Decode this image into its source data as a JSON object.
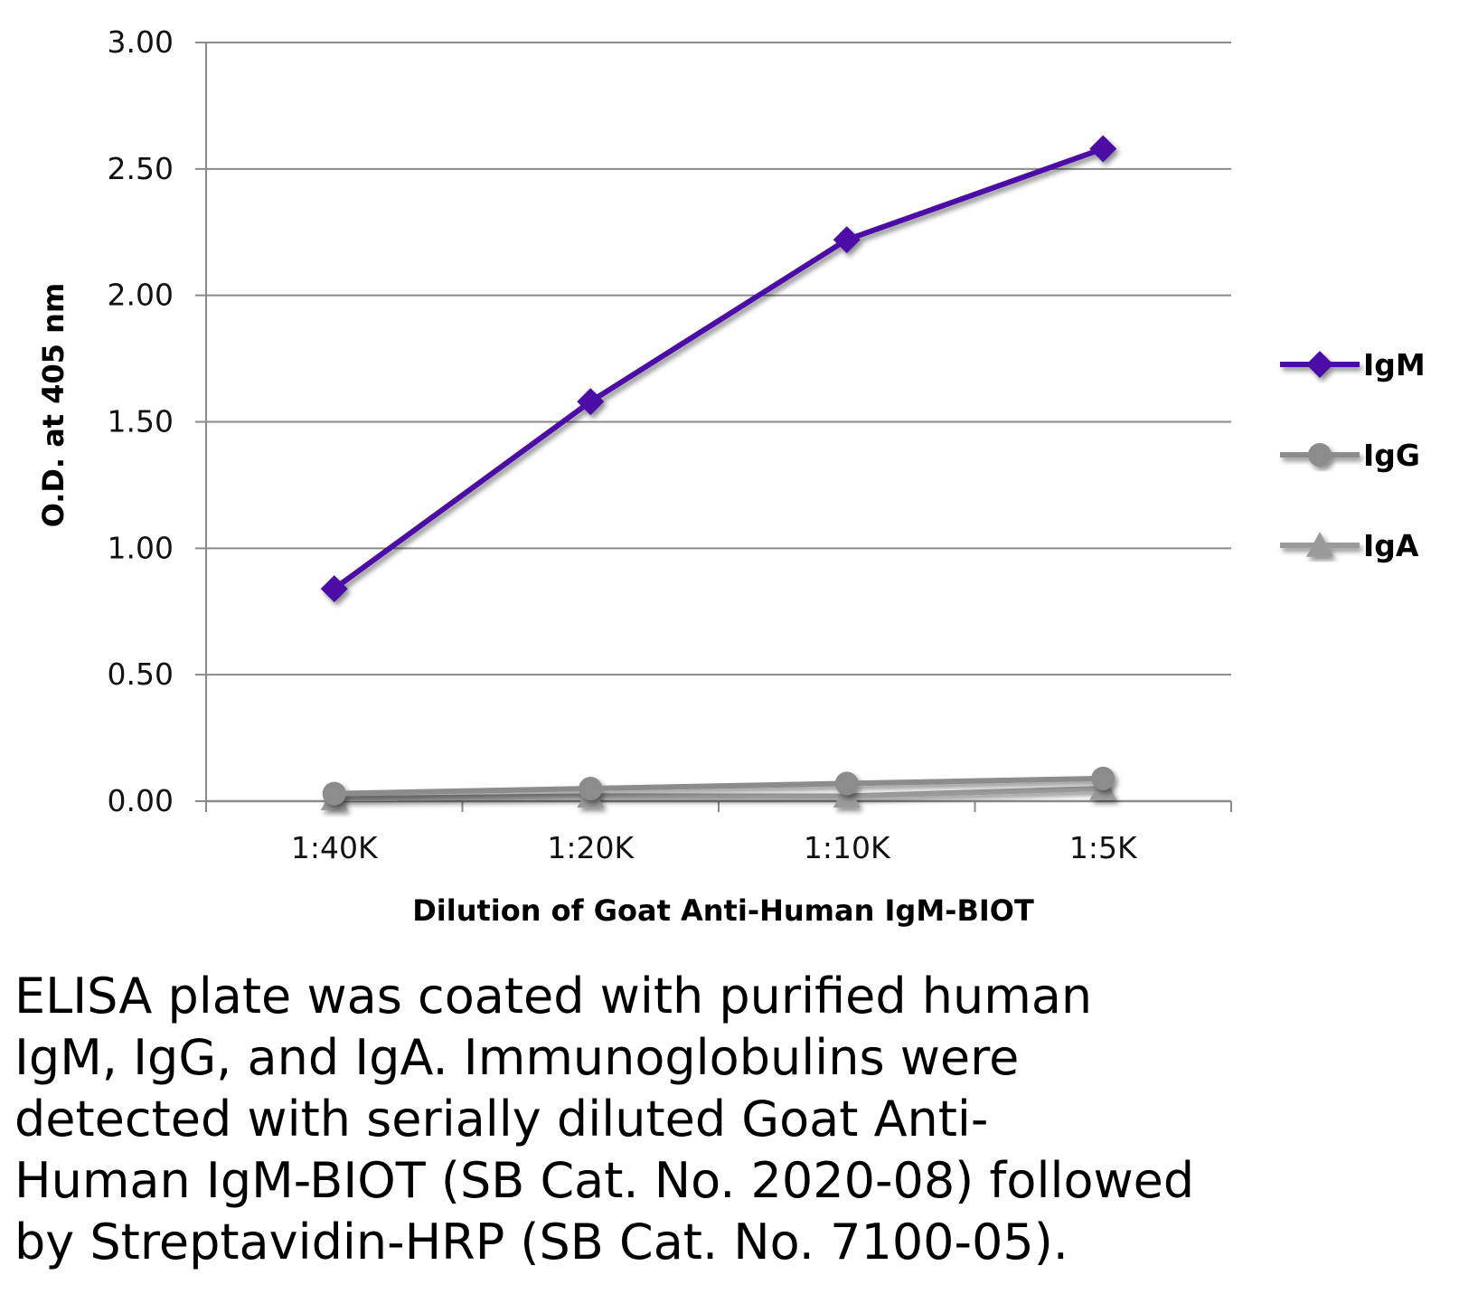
{
  "chart_data": {
    "type": "line",
    "title": "",
    "xlabel": "Dilution of Goat Anti-Human IgM-BIOT",
    "ylabel": "O.D. at 405 nm",
    "categories": [
      "1:40K",
      "1:20K",
      "1:10K",
      "1:5K"
    ],
    "ylim": [
      0,
      3
    ],
    "yticks": [
      "0.00",
      "0.50",
      "1.00",
      "1.50",
      "2.00",
      "2.50",
      "3.00"
    ],
    "grid": true,
    "legend_position": "right",
    "series": [
      {
        "name": "IgM",
        "marker": "diamond",
        "color": "#4B0FA6",
        "values": [
          0.84,
          1.58,
          2.22,
          2.58
        ]
      },
      {
        "name": "IgG",
        "marker": "circle",
        "color": "#8C8C8C",
        "values": [
          0.03,
          0.05,
          0.07,
          0.09
        ]
      },
      {
        "name": "IgA",
        "marker": "triangle",
        "color": "#9A9A9A",
        "values": [
          0.01,
          0.02,
          0.02,
          0.05
        ]
      }
    ]
  },
  "caption": {
    "lines": [
      "ELISA plate was coated with purified human",
      "IgM, IgG, and IgA.  Immunoglobulins were",
      "detected with serially diluted Goat Anti-",
      "Human IgM-BIOT (SB Cat. No. 2020-08) followed",
      "by Streptavidin-HRP (SB Cat. No. 7100-05)."
    ]
  }
}
